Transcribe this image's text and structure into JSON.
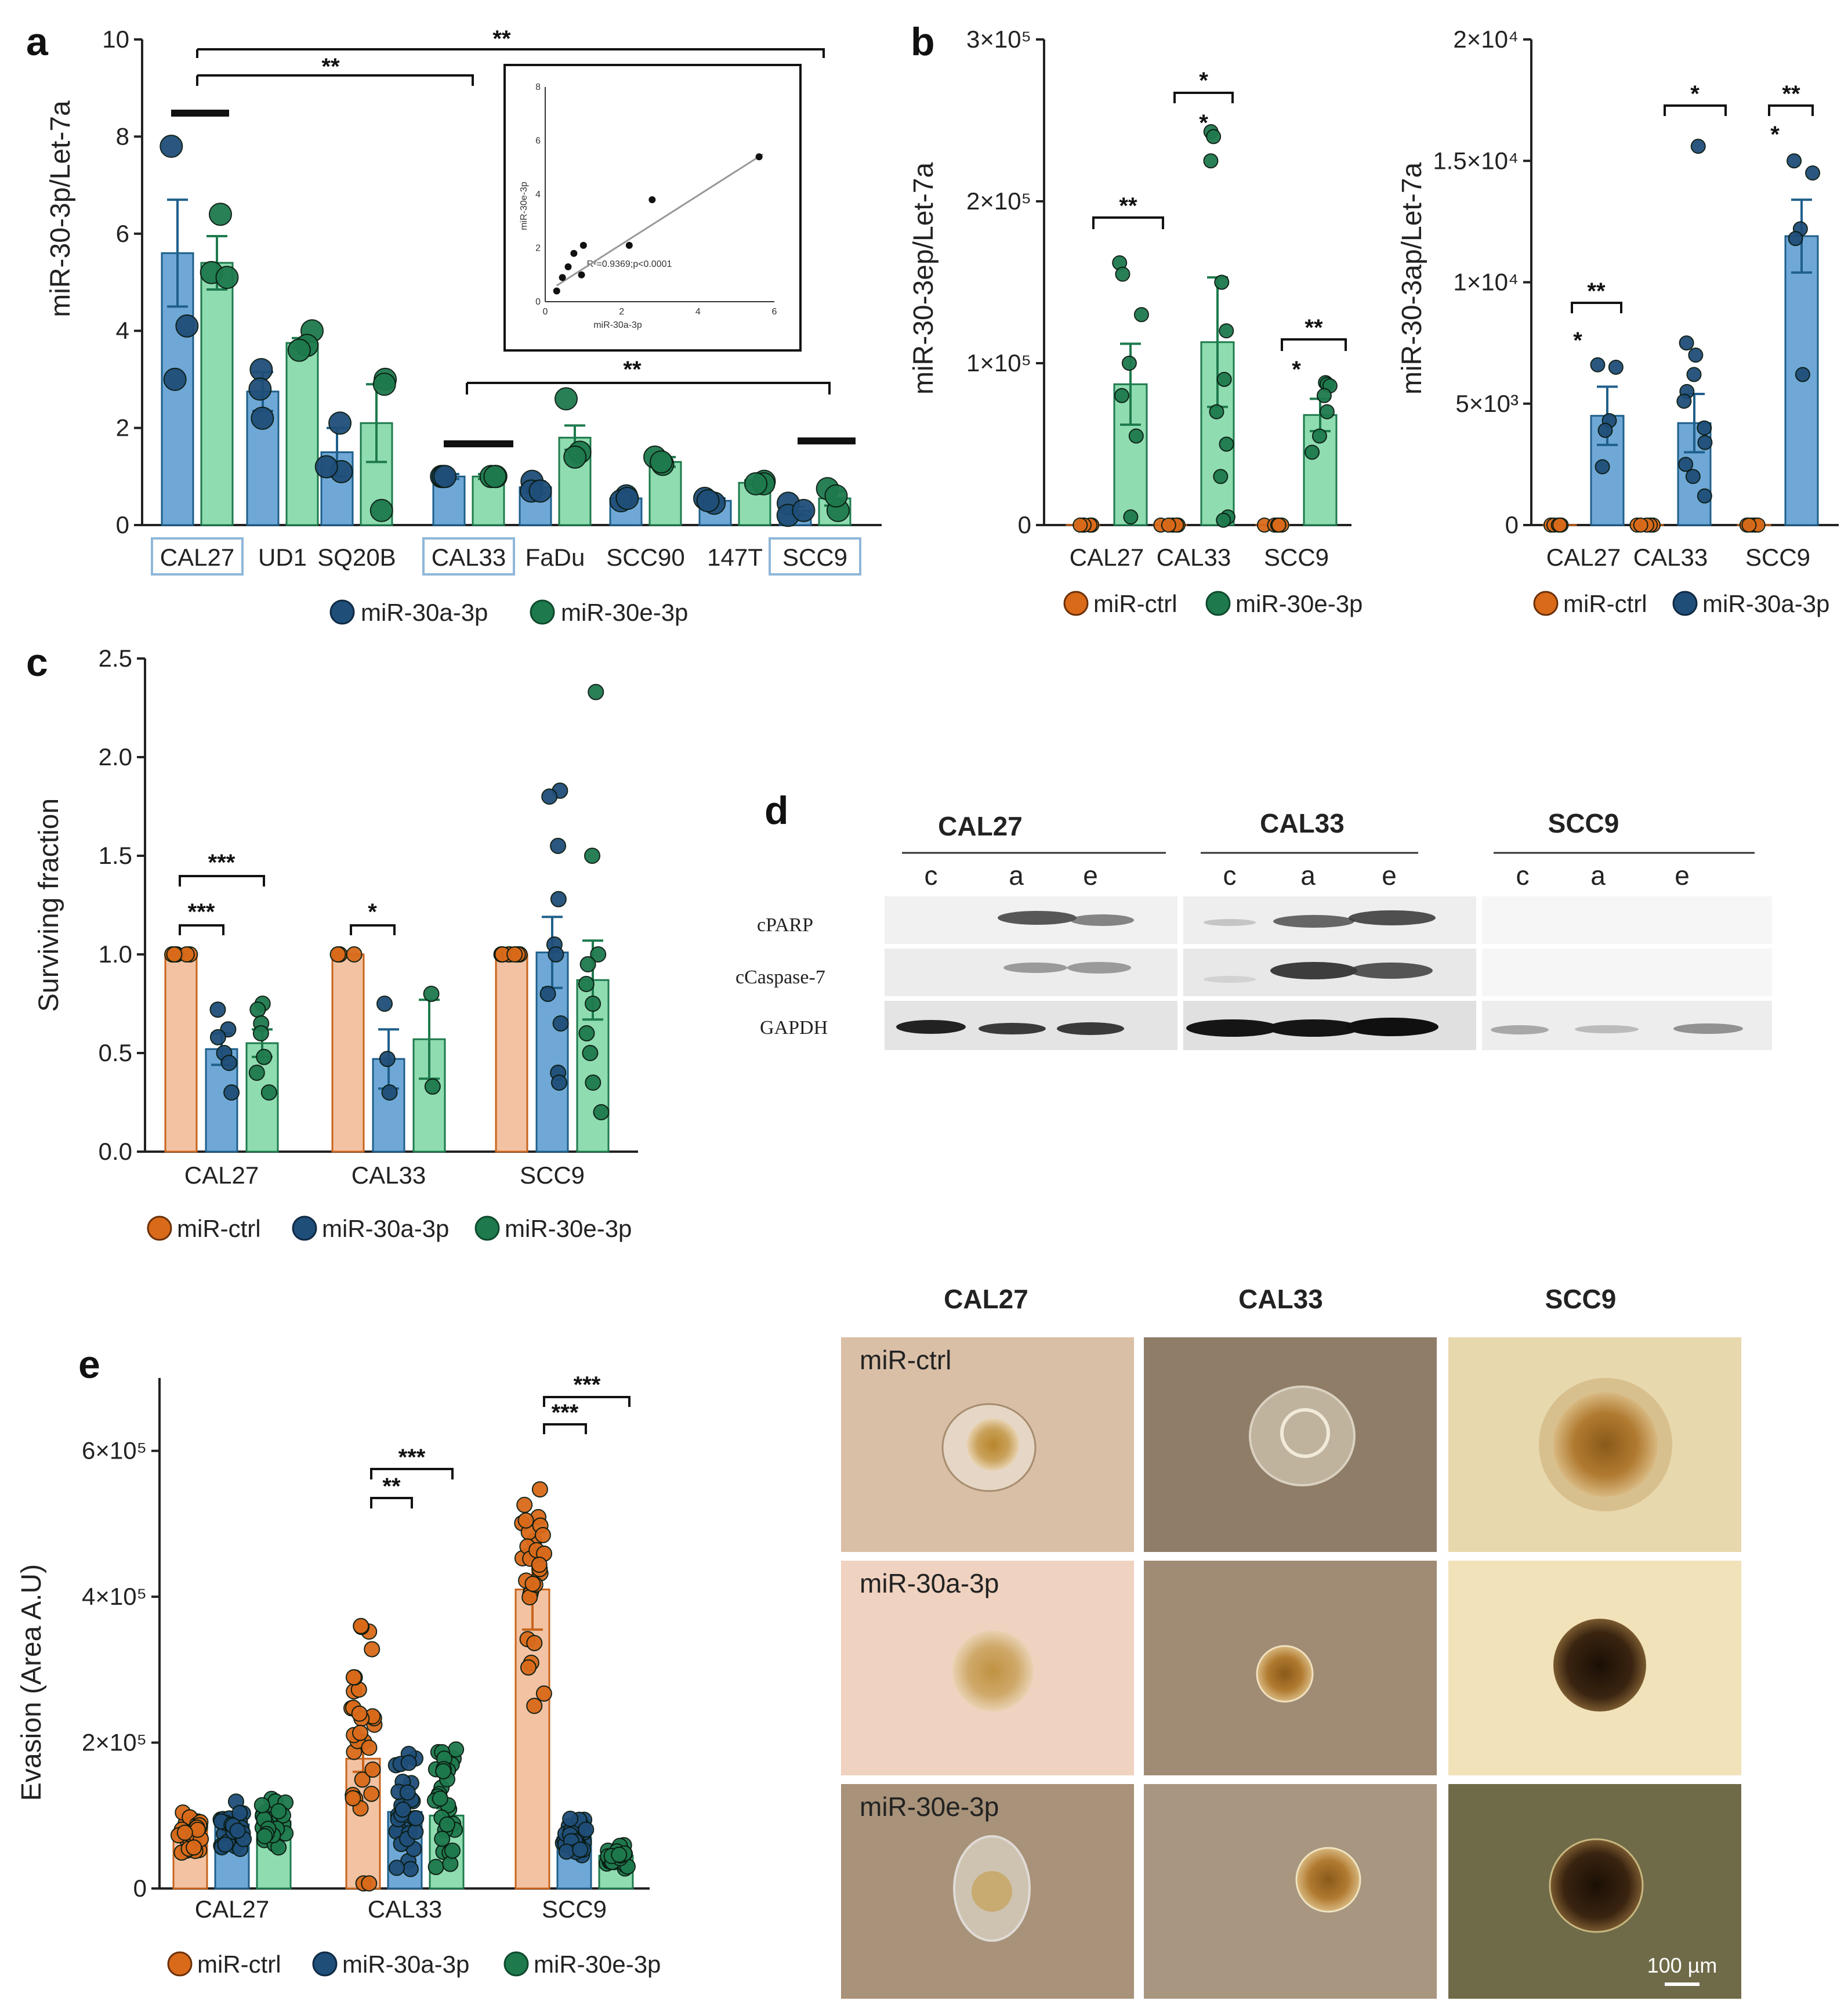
{
  "colors": {
    "blue": "#6fa8d6",
    "blue_dot": "#1f4e79",
    "green": "#8fdcb0",
    "green_dot": "#1e7a4d",
    "orange": "#f2c2a2",
    "orange_dot": "#d96a1a",
    "blue_edge": "#1f5f8b",
    "green_edge": "#1e7a4d",
    "orange_edge": "#c8641c"
  },
  "panels": {
    "a": {
      "letter": "a",
      "ylabel": "miR-30-3p/Let-7a",
      "yticks": [
        "0",
        "2",
        "4",
        "6",
        "8",
        "10"
      ],
      "legend": [
        "miR-30a-3p",
        "miR-30e-3p"
      ],
      "significance": [
        "**",
        "**",
        "**"
      ],
      "inset": {
        "xlabel": "miR-30a-3p",
        "ylabel": "miR-30e-3p",
        "stat": "R²=0.9369;p<0.0001",
        "xticks": [
          "0",
          "2",
          "4",
          "6"
        ],
        "yticks": [
          "0",
          "2",
          "4",
          "6",
          "8"
        ]
      }
    },
    "b": {
      "letter": "b",
      "left": {
        "ylabel": "miR-30-3ep/Let-7a",
        "yticks": [
          "0",
          "1×10⁵",
          "2×10⁵",
          "3×10⁵"
        ],
        "legend": [
          "miR-ctrl",
          "miR-30e-3p"
        ],
        "significance": [
          "**",
          "*",
          "*",
          "**",
          "*"
        ]
      },
      "right": {
        "ylabel": "miR-30-3ap/Let-7a",
        "yticks": [
          "0",
          "5×10³",
          "1×10⁴",
          "1.5×10⁴",
          "2×10⁴"
        ],
        "legend": [
          "miR-ctrl",
          "miR-30a-3p"
        ],
        "significance": [
          "**",
          "*",
          "*",
          "**",
          "*"
        ]
      }
    },
    "c": {
      "letter": "c",
      "ylabel": "Surviving fraction",
      "yticks": [
        "0.0",
        "0.5",
        "1.0",
        "1.5",
        "2.0",
        "2.5"
      ],
      "legend": [
        "miR-ctrl",
        "miR-30a-3p",
        "miR-30e-3p"
      ],
      "significance": [
        "***",
        "***",
        "*"
      ]
    },
    "d": {
      "letter": "d",
      "cells": [
        "CAL27",
        "CAL33",
        "SCC9"
      ],
      "lanes": [
        "c",
        "a",
        "e"
      ],
      "proteins": [
        "cPARP",
        "cCaspase-7",
        "GAPDH"
      ]
    },
    "e": {
      "letter": "e",
      "ylabel": "Evasion (Area A.U)",
      "yticks": [
        "0",
        "2×10⁵",
        "4×10⁵",
        "6×10⁵"
      ],
      "legend": [
        "miR-ctrl",
        "miR-30a-3p",
        "miR-30e-3p"
      ],
      "significance": [
        "**",
        "***",
        "***",
        "***"
      ],
      "micro_cols": [
        "CAL27",
        "CAL33",
        "SCC9"
      ],
      "micro_rows": [
        "miR-ctrl",
        "miR-30a-3p",
        "miR-30e-3p"
      ],
      "scale_bar": "100 µm"
    }
  },
  "chart_data": [
    {
      "type": "bar",
      "panel": "a",
      "ylim": [
        0,
        10
      ],
      "categories": [
        "CAL27",
        "UD1",
        "SQ20B",
        "CAL33",
        "FaDu",
        "SCC90",
        "147T",
        "SCC9"
      ],
      "boxed_categories": [
        "CAL27",
        "CAL33",
        "SCC9"
      ],
      "series": [
        {
          "name": "miR-30a-3p",
          "values": [
            5.6,
            2.75,
            1.5,
            1.0,
            0.78,
            0.55,
            0.5,
            0.3
          ],
          "errors": [
            1.1,
            0.4,
            0.5,
            0.05,
            0.12,
            0.05,
            0.05,
            0.08
          ],
          "points": [
            [
              7.8,
              4.1,
              3.0
            ],
            [
              3.2,
              2.8,
              2.2
            ],
            [
              2.1,
              1.1,
              1.2
            ],
            [
              1.0,
              1.0,
              1.0
            ],
            [
              0.9,
              0.7,
              0.7
            ],
            [
              0.6,
              0.5,
              0.55
            ],
            [
              0.55,
              0.45,
              0.5
            ],
            [
              0.45,
              0.2,
              0.3
            ]
          ]
        },
        {
          "name": "miR-30e-3p",
          "values": [
            5.4,
            3.75,
            2.1,
            1.0,
            1.8,
            1.3,
            0.87,
            0.55
          ],
          "errors": [
            0.55,
            0.1,
            0.8,
            0.05,
            0.25,
            0.1,
            0.05,
            0.15
          ],
          "points": [
            [
              6.4,
              5.2,
              5.1
            ],
            [
              4.0,
              3.7,
              3.6
            ],
            [
              3.0,
              0.3,
              2.9
            ],
            [
              1.0,
              1.0,
              1.0
            ],
            [
              2.6,
              1.5,
              1.4
            ],
            [
              1.4,
              1.25,
              1.3
            ],
            [
              0.9,
              0.85,
              0.85
            ],
            [
              0.75,
              0.3,
              0.6
            ]
          ]
        }
      ],
      "inset_points": [
        [
          0.3,
          0.4
        ],
        [
          0.45,
          0.9
        ],
        [
          0.6,
          1.3
        ],
        [
          0.75,
          1.8
        ],
        [
          0.95,
          1.0
        ],
        [
          1.0,
          2.1
        ],
        [
          2.2,
          2.1
        ],
        [
          2.8,
          3.8
        ],
        [
          5.6,
          5.4
        ]
      ]
    },
    {
      "type": "bar",
      "panel": "b-left",
      "ylim": [
        0,
        300000
      ],
      "categories": [
        "CAL27",
        "CAL33",
        "SCC9"
      ],
      "series": [
        {
          "name": "miR-ctrl",
          "values": [
            1,
            1,
            1
          ],
          "errors": [
            0,
            0,
            0
          ],
          "points": [
            [
              1,
              1,
              1,
              1,
              1
            ],
            [
              1,
              1,
              1,
              1,
              1
            ],
            [
              1,
              1,
              1,
              1,
              1
            ]
          ]
        },
        {
          "name": "miR-30e-3p",
          "values": [
            87000,
            113000,
            68000
          ],
          "errors": [
            25000,
            40000,
            10000
          ],
          "points": [
            [
              162000,
              155000,
              130000,
              100000,
              80000,
              55000,
              5000
            ],
            [
              243000,
              240000,
              225000,
              150000,
              120000,
              90000,
              70000,
              50000,
              30000,
              5000,
              3000
            ],
            [
              88000,
              87000,
              86000,
              80000,
              70000,
              55000,
              45000
            ]
          ]
        }
      ]
    },
    {
      "type": "bar",
      "panel": "b-right",
      "ylim": [
        0,
        20000
      ],
      "categories": [
        "CAL27",
        "CAL33",
        "SCC9"
      ],
      "series": [
        {
          "name": "miR-ctrl",
          "values": [
            1,
            1,
            1
          ],
          "errors": [
            0,
            0,
            0
          ],
          "points": [
            [
              1,
              1,
              1,
              1,
              1
            ],
            [
              1,
              1,
              1,
              1,
              1
            ],
            [
              1,
              1,
              1,
              1,
              1
            ]
          ]
        },
        {
          "name": "miR-30a-3p",
          "values": [
            4500,
            4200,
            11900
          ],
          "errors": [
            1200,
            1200,
            1500
          ],
          "points": [
            [
              6600,
              6500,
              4300,
              3900,
              2400
            ],
            [
              15600,
              7500,
              7000,
              6200,
              5500,
              5100,
              4000,
              3400,
              2500,
              2000,
              1200
            ],
            [
              15000,
              14500,
              12200,
              11800,
              6200
            ]
          ]
        }
      ]
    },
    {
      "type": "bar",
      "panel": "c",
      "ylim": [
        0,
        2.5
      ],
      "categories": [
        "CAL27",
        "CAL33",
        "SCC9"
      ],
      "series": [
        {
          "name": "miR-ctrl",
          "values": [
            1.0,
            1.0,
            1.0
          ],
          "errors": [
            0,
            0,
            0
          ],
          "points": [
            [
              1,
              1,
              1,
              1,
              1,
              1
            ],
            [
              1,
              1,
              1
            ],
            [
              1,
              1,
              1,
              1,
              1,
              1,
              1,
              1,
              1,
              1
            ]
          ]
        },
        {
          "name": "miR-30a-3p",
          "values": [
            0.52,
            0.47,
            1.01
          ],
          "errors": [
            0.08,
            0.15,
            0.18
          ],
          "points": [
            [
              0.72,
              0.62,
              0.58,
              0.5,
              0.45,
              0.3
            ],
            [
              0.75,
              0.47,
              0.3
            ],
            [
              1.83,
              1.8,
              1.55,
              1.28,
              1.05,
              1.0,
              0.8,
              0.65,
              0.4,
              0.35
            ]
          ]
        },
        {
          "name": "miR-30e-3p",
          "values": [
            0.55,
            0.57,
            0.87
          ],
          "errors": [
            0.07,
            0.2,
            0.2
          ],
          "points": [
            [
              0.75,
              0.72,
              0.65,
              0.6,
              0.48,
              0.4,
              0.3
            ],
            [
              0.8,
              0.33
            ],
            [
              2.33,
              1.5,
              1.0,
              0.95,
              0.85,
              0.75,
              0.6,
              0.5,
              0.35,
              0.2
            ]
          ]
        }
      ]
    },
    {
      "type": "bar",
      "panel": "e",
      "ylim": [
        0,
        700000
      ],
      "categories": [
        "CAL27",
        "CAL33",
        "SCC9"
      ],
      "series": [
        {
          "name": "miR-ctrl",
          "values": [
            80000,
            178000,
            410000
          ],
          "errors": [
            6000,
            18000,
            55000
          ],
          "spread": [
            20000,
            470000,
            0
          ]
        },
        {
          "name": "miR-30a-3p",
          "values": [
            88000,
            105000,
            70000
          ],
          "errors": [
            8000,
            10000,
            12000
          ],
          "spread": [
            30000,
            235000,
            0
          ]
        },
        {
          "name": "miR-30e-3p",
          "values": [
            92000,
            100000,
            45000
          ],
          "errors": [
            7000,
            10000,
            6000
          ],
          "spread": [
            25000,
            250000,
            0
          ]
        }
      ]
    }
  ]
}
